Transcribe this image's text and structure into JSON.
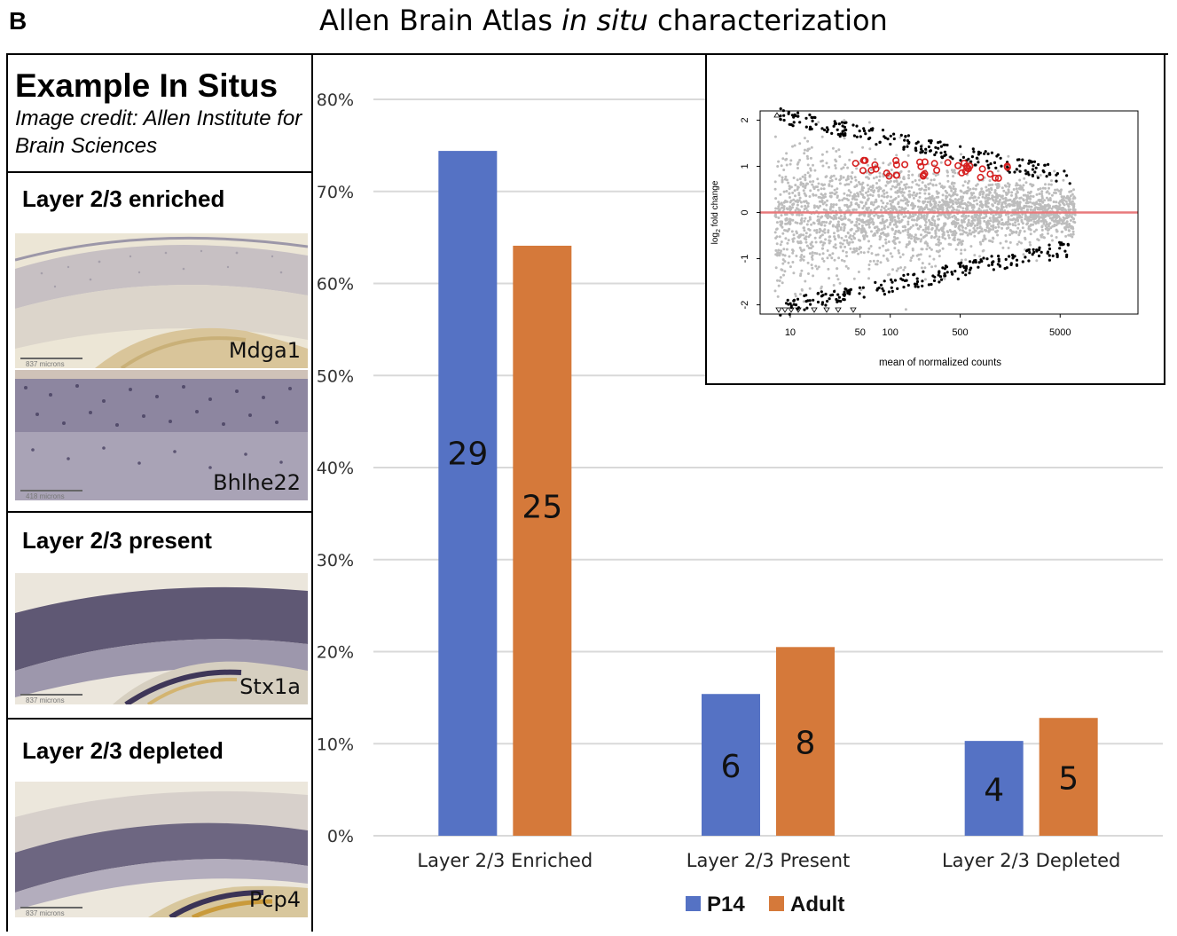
{
  "figure": {
    "panel_letter": "B",
    "title_pre": "Allen Brain Atlas ",
    "title_italic": "in situ",
    "title_post": " characterization"
  },
  "left_panel": {
    "heading": "Example In Situs",
    "credit": "Image credit: Allen Institute for Brain Sciences",
    "sections": [
      {
        "title": "Layer 2/3 enriched",
        "genes": [
          "Mdga1",
          "Bhlhe22"
        ],
        "scale_labels": [
          "837 microns",
          "418 microns"
        ]
      },
      {
        "title": "Layer 2/3 present",
        "genes": [
          "Stx1a"
        ],
        "scale_labels": [
          "837 microns"
        ]
      },
      {
        "title": "Layer 2/3 depleted",
        "genes": [
          "Pcp4"
        ],
        "scale_labels": [
          "837 microns"
        ]
      }
    ]
  },
  "chart_data": [
    {
      "type": "bar",
      "categories": [
        "Layer 2/3 Enriched",
        "Layer 2/3 Present",
        "Layer 2/3 Depleted"
      ],
      "series": [
        {
          "name": "P14",
          "color": "#5572c4",
          "values": [
            74.4,
            15.4,
            10.3
          ],
          "labels": [
            "29",
            "6",
            "4"
          ]
        },
        {
          "name": "Adult",
          "color": "#d5793a",
          "values": [
            64.1,
            20.5,
            12.8
          ],
          "labels": [
            "25",
            "8",
            "5"
          ]
        }
      ],
      "y_ticks": [
        "0%",
        "10%",
        "20%",
        "30%",
        "40%",
        "50%",
        "60%",
        "70%",
        "80%"
      ],
      "ylim": [
        0,
        80
      ],
      "grid": true,
      "legend_placement": "bottom-center"
    },
    {
      "type": "scatter",
      "title": "",
      "xlabel": "mean of normalized counts",
      "ylabel_prefix": "log",
      "ylabel_sub": "2",
      "ylabel_suffix": " fold change",
      "x_scale": "log",
      "x_ticks": [
        "10",
        "50",
        "100",
        "500",
        "5000"
      ],
      "x_tick_values": [
        10,
        50,
        100,
        500,
        5000
      ],
      "y_ticks": [
        "-2",
        "-1",
        "0",
        "1",
        "2"
      ],
      "xlim": [
        5,
        30000
      ],
      "ylim": [
        -2.2,
        2.2
      ],
      "reference_line": {
        "y": 0,
        "color": "#e8797b"
      },
      "point_colors": {
        "not_significant": "#bdbdbd",
        "significant": "#000000",
        "highlighted": "#d62020"
      }
    }
  ]
}
